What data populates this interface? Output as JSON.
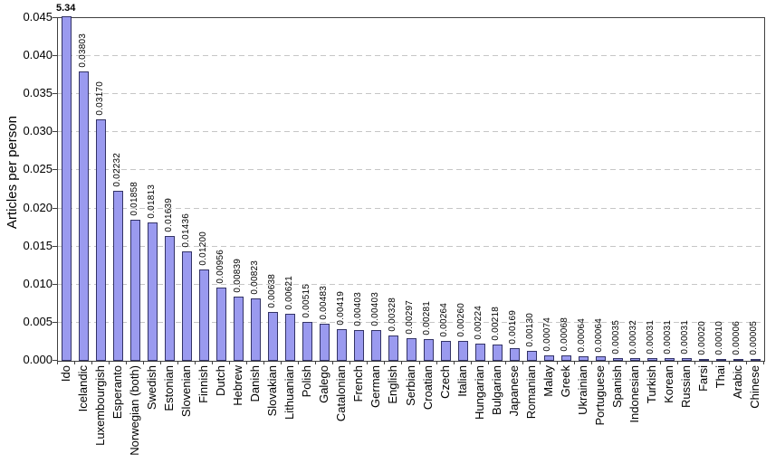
{
  "chart_data": {
    "type": "bar",
    "title": "",
    "xlabel": "",
    "ylabel": "Articles per person",
    "ylim": [
      0,
      0.045
    ],
    "ytick_step": 0.005,
    "ytick_labels": [
      "0.000",
      "0.005",
      "0.010",
      "0.015",
      "0.020",
      "0.025",
      "0.030",
      "0.035",
      "0.040",
      "0.045"
    ],
    "grid": "horizontal-dashed",
    "legend": "none",
    "note": "First bar (Ido) exceeds the y-axis maximum and is clipped at the top of the plot; its value label 5.34 is shown horizontally in bold.",
    "categories": [
      "Ido",
      "Icelandic",
      "Luxembourgish",
      "Esperanto",
      "Norwegian (both)",
      "Swedish",
      "Estonian",
      "Slovenian",
      "Finnish",
      "Dutch",
      "Hebrew",
      "Danish",
      "Slovakian",
      "Lithuanian",
      "Polish",
      "Galego",
      "Catalonian",
      "French",
      "German",
      "English",
      "Serbian",
      "Croatian",
      "Czech",
      "Italian",
      "Hungarian",
      "Bulgarian",
      "Japanese",
      "Romanian",
      "Malay",
      "Greek",
      "Ukrainian",
      "Portuguese",
      "Spanish",
      "Indonesian",
      "Turkish",
      "Korean",
      "Russian",
      "Farsi",
      "Thai",
      "Arabic",
      "Chinese"
    ],
    "values": [
      5.34,
      0.03803,
      0.0317,
      0.02232,
      0.01858,
      0.01813,
      0.01639,
      0.01436,
      0.012,
      0.00956,
      0.00839,
      0.00823,
      0.00638,
      0.00621,
      0.00515,
      0.00483,
      0.00419,
      0.00403,
      0.00403,
      0.00328,
      0.00297,
      0.00281,
      0.00264,
      0.0026,
      0.00224,
      0.00218,
      0.00169,
      0.0013,
      0.00074,
      0.00068,
      0.00064,
      0.00064,
      0.00035,
      0.00032,
      0.00031,
      0.00031,
      0.00031,
      0.0002,
      0.0001,
      6e-05,
      5e-05
    ],
    "value_labels": [
      "5.34",
      "0.03803",
      "0.03170",
      "0.02232",
      "0.01858",
      "0.01813",
      "0.01639",
      "0.01436",
      "0.01200",
      "0.00956",
      "0.00839",
      "0.00823",
      "0.00638",
      "0.00621",
      "0.00515",
      "0.00483",
      "0.00419",
      "0.00403",
      "0.00403",
      "0.00328",
      "0.00297",
      "0.00281",
      "0.00264",
      "0.00260",
      "0.00224",
      "0.00218",
      "0.00169",
      "0.00130",
      "0.00074",
      "0.00068",
      "0.00064",
      "0.00064",
      "0.00035",
      "0.00032",
      "0.00031",
      "0.00031",
      "0.00031",
      "0.00020",
      "0.00010",
      "0.00006",
      "0.00005"
    ],
    "colors": {
      "bar_fill": "#9a9aef",
      "bar_border": "#333366",
      "gridline": "#c6c6c6",
      "axis": "#404040",
      "text": "#000000",
      "background": "#ffffff"
    }
  }
}
